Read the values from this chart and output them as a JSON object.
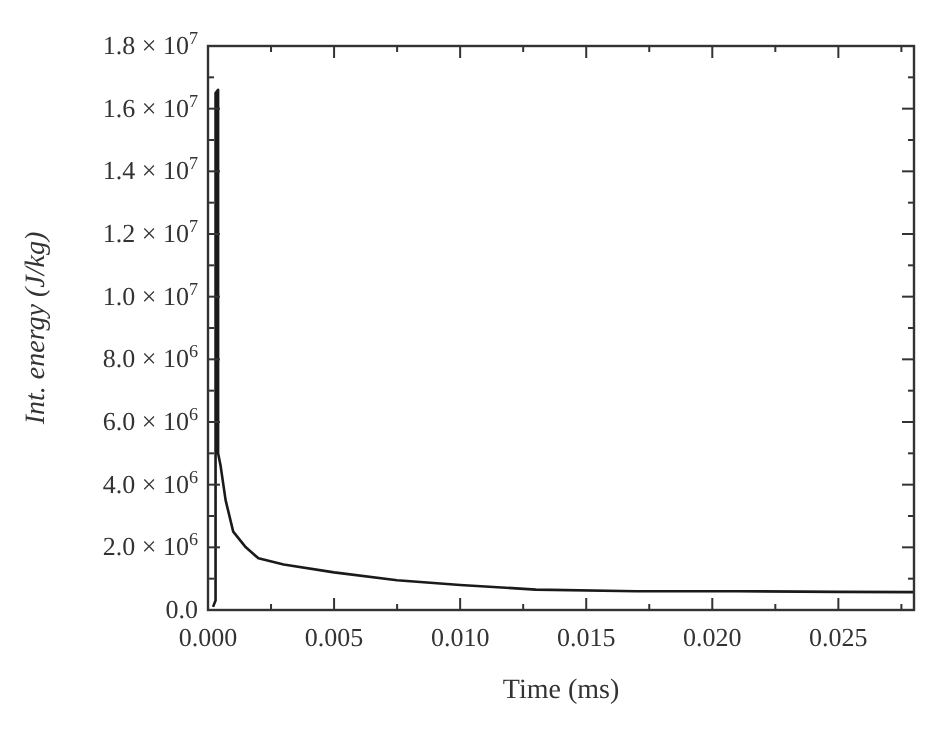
{
  "chart_data": {
    "type": "line",
    "xlabel": "Time (ms)",
    "ylabel": "Int. energy (J/kg)",
    "x": [
      0.0002,
      0.0003,
      0.0003,
      0.0004,
      0.0004,
      0.0005,
      0.0007,
      0.001,
      0.0015,
      0.002,
      0.003,
      0.005,
      0.0075,
      0.01,
      0.013,
      0.017,
      0.021,
      0.025,
      0.028
    ],
    "series": [
      {
        "color": "#1a1a1a",
        "values": [
          100000,
          300000,
          16500000,
          16600000,
          5000000,
          4600000,
          3500000,
          2500000,
          2000000,
          1650000,
          1450000,
          1200000,
          950000,
          800000,
          650000,
          600000,
          600000,
          580000,
          570000
        ]
      }
    ],
    "xlim": [
      0,
      0.028
    ],
    "xticks": [
      {
        "value": 0,
        "label": "0.000"
      },
      {
        "value": 0.0025,
        "label": null
      },
      {
        "value": 0.005,
        "label": "0.005"
      },
      {
        "value": 0.0075,
        "label": null
      },
      {
        "value": 0.01,
        "label": "0.010"
      },
      {
        "value": 0.0125,
        "label": null
      },
      {
        "value": 0.015,
        "label": "0.015"
      },
      {
        "value": 0.0175,
        "label": null
      },
      {
        "value": 0.02,
        "label": "0.020"
      },
      {
        "value": 0.0225,
        "label": null
      },
      {
        "value": 0.025,
        "label": "0.025"
      },
      {
        "value": 0.0275,
        "label": null
      }
    ],
    "ylim": [
      0,
      18000000
    ],
    "yticks": [
      {
        "value": 0,
        "label": "0.0"
      },
      {
        "value": 1000000,
        "label": null
      },
      {
        "value": 2000000,
        "label": "2.0 × 10$^{6}$"
      },
      {
        "value": 3000000,
        "label": null
      },
      {
        "value": 4000000,
        "label": "4.0 × 10$^{6}$"
      },
      {
        "value": 5000000,
        "label": null
      },
      {
        "value": 6000000,
        "label": "6.0 × 10$^{6}$"
      },
      {
        "value": 7000000,
        "label": null
      },
      {
        "value": 8000000,
        "label": "8.0 × 10$^{6}$"
      },
      {
        "value": 9000000,
        "label": null
      },
      {
        "value": 10000000,
        "label": "1.0 × 10$^{7}$"
      },
      {
        "value": 11000000,
        "label": null
      },
      {
        "value": 12000000,
        "label": "1.2 × 10$^{7}$"
      },
      {
        "value": 13000000,
        "label": null
      },
      {
        "value": 14000000,
        "label": "1.4 × 10$^{7}$"
      },
      {
        "value": 15000000,
        "label": null
      },
      {
        "value": 16000000,
        "label": "1.6 × 10$^{7}$"
      },
      {
        "value": 17000000,
        "label": null
      },
      {
        "value": 18000000,
        "label": "1.8 × 10$^{7}$"
      }
    ],
    "grid": false,
    "line_style": "solid"
  }
}
